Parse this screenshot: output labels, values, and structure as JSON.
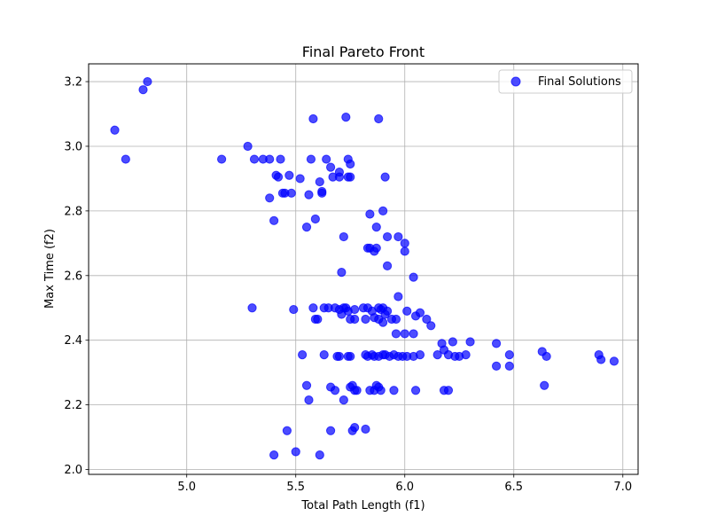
{
  "chart_data": {
    "type": "scatter",
    "title": "Final Pareto Front",
    "xlabel": "Total Path Length (f1)",
    "ylabel": "Max Time (f2)",
    "xlim": [
      4.55,
      7.07
    ],
    "ylim": [
      1.985,
      3.255
    ],
    "x_ticks": [
      "5.0",
      "5.5",
      "6.0",
      "6.5",
      "7.0"
    ],
    "y_ticks": [
      "2.0",
      "2.2",
      "2.4",
      "2.6",
      "2.8",
      "3.0",
      "3.2"
    ],
    "x_tick_values": [
      5.0,
      5.5,
      6.0,
      6.5,
      7.0
    ],
    "y_tick_values": [
      2.0,
      2.2,
      2.4,
      2.6,
      2.8,
      3.0,
      3.2
    ],
    "grid": true,
    "legend_position": "top-right",
    "series": [
      {
        "name": "Final Solutions",
        "color": "#0000ff",
        "points": [
          [
            4.67,
            3.05
          ],
          [
            4.72,
            2.96
          ],
          [
            4.8,
            3.175
          ],
          [
            4.82,
            3.2
          ],
          [
            5.16,
            2.96
          ],
          [
            5.28,
            3.0
          ],
          [
            5.31,
            2.96
          ],
          [
            5.35,
            2.96
          ],
          [
            5.38,
            2.96
          ],
          [
            5.43,
            2.96
          ],
          [
            5.41,
            2.91
          ],
          [
            5.42,
            2.905
          ],
          [
            5.47,
            2.91
          ],
          [
            5.52,
            2.9
          ],
          [
            5.44,
            2.855
          ],
          [
            5.45,
            2.855
          ],
          [
            5.48,
            2.855
          ],
          [
            5.38,
            2.84
          ],
          [
            5.4,
            2.77
          ],
          [
            5.55,
            2.75
          ],
          [
            5.56,
            2.85
          ],
          [
            5.59,
            2.775
          ],
          [
            5.61,
            2.89
          ],
          [
            5.62,
            2.86
          ],
          [
            5.62,
            2.855
          ],
          [
            5.58,
            3.085
          ],
          [
            5.73,
            3.09
          ],
          [
            5.88,
            3.085
          ],
          [
            5.57,
            2.96
          ],
          [
            5.64,
            2.96
          ],
          [
            5.66,
            2.935
          ],
          [
            5.67,
            2.905
          ],
          [
            5.7,
            2.92
          ],
          [
            5.7,
            2.905
          ],
          [
            5.74,
            2.96
          ],
          [
            5.75,
            2.945
          ],
          [
            5.74,
            2.905
          ],
          [
            5.75,
            2.905
          ],
          [
            5.91,
            2.905
          ],
          [
            5.84,
            2.79
          ],
          [
            5.9,
            2.8
          ],
          [
            5.87,
            2.75
          ],
          [
            5.72,
            2.72
          ],
          [
            5.92,
            2.72
          ],
          [
            5.97,
            2.72
          ],
          [
            6.0,
            2.7
          ],
          [
            5.83,
            2.685
          ],
          [
            5.84,
            2.685
          ],
          [
            5.87,
            2.685
          ],
          [
            5.86,
            2.675
          ],
          [
            6.0,
            2.675
          ],
          [
            5.71,
            2.61
          ],
          [
            5.92,
            2.63
          ],
          [
            6.04,
            2.595
          ],
          [
            5.3,
            2.5
          ],
          [
            5.49,
            2.495
          ],
          [
            5.58,
            2.5
          ],
          [
            5.63,
            2.5
          ],
          [
            5.65,
            2.5
          ],
          [
            5.68,
            2.5
          ],
          [
            5.7,
            2.495
          ],
          [
            5.72,
            2.5
          ],
          [
            5.73,
            2.5
          ],
          [
            5.74,
            2.49
          ],
          [
            5.77,
            2.495
          ],
          [
            5.81,
            2.5
          ],
          [
            5.83,
            2.5
          ],
          [
            5.85,
            2.49
          ],
          [
            5.88,
            2.5
          ],
          [
            5.89,
            2.495
          ],
          [
            5.9,
            2.5
          ],
          [
            5.92,
            2.49
          ],
          [
            5.97,
            2.535
          ],
          [
            6.01,
            2.49
          ],
          [
            6.05,
            2.475
          ],
          [
            6.07,
            2.485
          ],
          [
            6.1,
            2.465
          ],
          [
            6.12,
            2.445
          ],
          [
            5.59,
            2.465
          ],
          [
            5.6,
            2.465
          ],
          [
            5.71,
            2.48
          ],
          [
            5.75,
            2.465
          ],
          [
            5.77,
            2.465
          ],
          [
            5.82,
            2.465
          ],
          [
            5.86,
            2.47
          ],
          [
            5.88,
            2.465
          ],
          [
            5.9,
            2.455
          ],
          [
            5.91,
            2.48
          ],
          [
            5.94,
            2.465
          ],
          [
            5.96,
            2.465
          ],
          [
            5.96,
            2.42
          ],
          [
            6.0,
            2.42
          ],
          [
            6.04,
            2.42
          ],
          [
            5.53,
            2.355
          ],
          [
            5.63,
            2.355
          ],
          [
            5.69,
            2.35
          ],
          [
            5.7,
            2.35
          ],
          [
            5.74,
            2.35
          ],
          [
            5.75,
            2.35
          ],
          [
            5.82,
            2.355
          ],
          [
            5.83,
            2.35
          ],
          [
            5.85,
            2.355
          ],
          [
            5.86,
            2.35
          ],
          [
            5.88,
            2.35
          ],
          [
            5.9,
            2.355
          ],
          [
            5.91,
            2.355
          ],
          [
            5.93,
            2.35
          ],
          [
            5.95,
            2.355
          ],
          [
            5.97,
            2.35
          ],
          [
            5.99,
            2.35
          ],
          [
            6.01,
            2.35
          ],
          [
            6.04,
            2.35
          ],
          [
            6.07,
            2.355
          ],
          [
            6.15,
            2.355
          ],
          [
            6.18,
            2.37
          ],
          [
            6.2,
            2.355
          ],
          [
            6.23,
            2.35
          ],
          [
            6.25,
            2.35
          ],
          [
            6.28,
            2.355
          ],
          [
            6.17,
            2.39
          ],
          [
            6.22,
            2.395
          ],
          [
            6.3,
            2.395
          ],
          [
            6.42,
            2.39
          ],
          [
            6.42,
            2.32
          ],
          [
            6.48,
            2.32
          ],
          [
            6.48,
            2.355
          ],
          [
            6.63,
            2.365
          ],
          [
            6.65,
            2.35
          ],
          [
            6.89,
            2.355
          ],
          [
            6.9,
            2.34
          ],
          [
            6.96,
            2.335
          ],
          [
            6.64,
            2.26
          ],
          [
            5.55,
            2.26
          ],
          [
            5.56,
            2.215
          ],
          [
            5.66,
            2.255
          ],
          [
            5.68,
            2.245
          ],
          [
            5.72,
            2.215
          ],
          [
            5.75,
            2.255
          ],
          [
            5.76,
            2.26
          ],
          [
            5.77,
            2.245
          ],
          [
            5.78,
            2.245
          ],
          [
            5.84,
            2.245
          ],
          [
            5.86,
            2.245
          ],
          [
            5.87,
            2.26
          ],
          [
            5.88,
            2.255
          ],
          [
            5.89,
            2.245
          ],
          [
            5.95,
            2.245
          ],
          [
            6.05,
            2.245
          ],
          [
            6.18,
            2.245
          ],
          [
            6.2,
            2.245
          ],
          [
            5.46,
            2.12
          ],
          [
            5.66,
            2.12
          ],
          [
            5.76,
            2.12
          ],
          [
            5.77,
            2.13
          ],
          [
            5.82,
            2.125
          ],
          [
            5.4,
            2.045
          ],
          [
            5.5,
            2.055
          ],
          [
            5.61,
            2.045
          ]
        ]
      }
    ]
  }
}
